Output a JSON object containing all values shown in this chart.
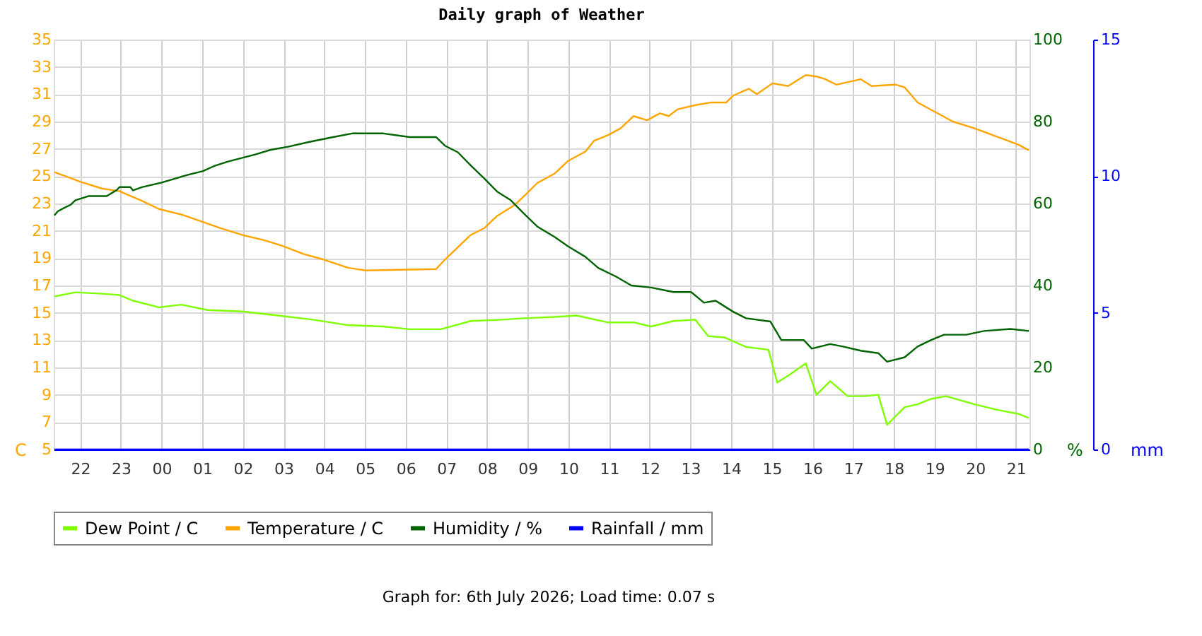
{
  "chart_data": {
    "type": "line",
    "title": "Daily graph of Weather",
    "annotations": [
      "Graph for: 6th July 2026; Load time: 0.07 s"
    ],
    "ylabel": "C",
    "y2label": "%",
    "y3label": "mm",
    "legend": "bottom",
    "grid": true,
    "line_style": "solid",
    "xlim": [
      "2026-07-05T21:21",
      "2026-07-06T21:20"
    ],
    "xticks": [
      {
        "value": "2026-07-05T22:00",
        "label": "22"
      },
      {
        "value": "2026-07-05T23:00",
        "label": "23"
      },
      {
        "value": "2026-07-06T00:00",
        "label": "00"
      },
      {
        "value": "2026-07-06T01:00",
        "label": "01"
      },
      {
        "value": "2026-07-06T02:00",
        "label": "02"
      },
      {
        "value": "2026-07-06T03:00",
        "label": "03"
      },
      {
        "value": "2026-07-06T04:00",
        "label": "04"
      },
      {
        "value": "2026-07-06T05:00",
        "label": "05"
      },
      {
        "value": "2026-07-06T06:00",
        "label": "06"
      },
      {
        "value": "2026-07-06T07:00",
        "label": "07"
      },
      {
        "value": "2026-07-06T08:00",
        "label": "08"
      },
      {
        "value": "2026-07-06T09:00",
        "label": "09"
      },
      {
        "value": "2026-07-06T10:00",
        "label": "10"
      },
      {
        "value": "2026-07-06T11:00",
        "label": "11"
      },
      {
        "value": "2026-07-06T12:00",
        "label": "12"
      },
      {
        "value": "2026-07-06T13:00",
        "label": "13"
      },
      {
        "value": "2026-07-06T14:00",
        "label": "14"
      },
      {
        "value": "2026-07-06T15:00",
        "label": "15"
      },
      {
        "value": "2026-07-06T16:00",
        "label": "16"
      },
      {
        "value": "2026-07-06T17:00",
        "label": "17"
      },
      {
        "value": "2026-07-06T18:00",
        "label": "18"
      },
      {
        "value": "2026-07-06T19:00",
        "label": "19"
      },
      {
        "value": "2026-07-06T20:00",
        "label": "20"
      },
      {
        "value": "2026-07-06T21:00",
        "label": "21"
      }
    ],
    "ylim": [
      5,
      35
    ],
    "yticks": [
      5,
      7,
      9,
      11,
      13,
      15,
      17,
      19,
      21,
      23,
      25,
      27,
      29,
      31,
      33,
      35
    ],
    "y2lim": [
      0,
      100
    ],
    "y2ticks": [
      0,
      20,
      40,
      60,
      80,
      100
    ],
    "y3lim": [
      0,
      15
    ],
    "y3ticks": [
      0,
      5,
      10,
      15
    ],
    "series": [
      {
        "name": "Dew Point / C",
        "color": "#7fff00",
        "axis": "y",
        "x": [
          "2026-07-05T21:22",
          "2026-07-05T21:53",
          "2026-07-05T22:32",
          "2026-07-05T22:58",
          "2026-07-05T23:17",
          "2026-07-05T23:56",
          "2026-07-06T00:29",
          "2026-07-06T01:08",
          "2026-07-06T01:59",
          "2026-07-06T02:52",
          "2026-07-06T03:43",
          "2026-07-06T04:35",
          "2026-07-06T05:27",
          "2026-07-06T06:06",
          "2026-07-06T06:52",
          "2026-07-06T07:36",
          "2026-07-06T08:22",
          "2026-07-06T08:54",
          "2026-07-06T09:40",
          "2026-07-06T10:12",
          "2026-07-06T10:58",
          "2026-07-06T11:36",
          "2026-07-06T12:02",
          "2026-07-06T12:35",
          "2026-07-06T13:07",
          "2026-07-06T13:26",
          "2026-07-06T13:50",
          "2026-07-06T14:22",
          "2026-07-06T14:55",
          "2026-07-06T15:08",
          "2026-07-06T15:27",
          "2026-07-06T15:50",
          "2026-07-06T16:06",
          "2026-07-06T16:26",
          "2026-07-06T16:52",
          "2026-07-06T17:17",
          "2026-07-06T17:37",
          "2026-07-06T17:50",
          "2026-07-06T18:16",
          "2026-07-06T18:35",
          "2026-07-06T18:55",
          "2026-07-06T19:17",
          "2026-07-06T19:59",
          "2026-07-06T20:32",
          "2026-07-06T21:04",
          "2026-07-06T21:19"
        ],
        "values": [
          16.2,
          16.5,
          16.4,
          16.3,
          15.9,
          15.4,
          15.6,
          15.2,
          15.1,
          14.8,
          14.5,
          14.1,
          14.0,
          13.8,
          13.8,
          14.4,
          14.5,
          14.6,
          14.7,
          14.8,
          14.3,
          14.3,
          14.0,
          14.4,
          14.5,
          13.3,
          13.2,
          12.5,
          12.3,
          9.9,
          10.5,
          11.3,
          9.0,
          10.0,
          8.9,
          8.9,
          9.0,
          6.8,
          8.1,
          8.3,
          8.7,
          8.9,
          8.3,
          7.9,
          7.6,
          7.3
        ]
      },
      {
        "name": "Temperature / C",
        "color": "#ffa500",
        "axis": "y",
        "x": [
          "2026-07-05T21:22",
          "2026-07-05T22:00",
          "2026-07-05T22:32",
          "2026-07-05T22:58",
          "2026-07-05T23:31",
          "2026-07-05T23:56",
          "2026-07-06T00:29",
          "2026-07-06T00:58",
          "2026-07-06T01:27",
          "2026-07-06T01:59",
          "2026-07-06T02:32",
          "2026-07-06T02:58",
          "2026-07-06T03:30",
          "2026-07-06T03:59",
          "2026-07-06T04:35",
          "2026-07-06T05:01",
          "2026-07-06T06:45",
          "2026-07-06T06:58",
          "2026-07-06T07:36",
          "2026-07-06T07:56",
          "2026-07-06T08:15",
          "2026-07-06T08:41",
          "2026-07-06T08:58",
          "2026-07-06T09:14",
          "2026-07-06T09:40",
          "2026-07-06T09:59",
          "2026-07-06T10:25",
          "2026-07-06T10:38",
          "2026-07-06T10:58",
          "2026-07-06T11:17",
          "2026-07-06T11:36",
          "2026-07-06T11:56",
          "2026-07-06T12:15",
          "2026-07-06T12:28",
          "2026-07-06T12:41",
          "2026-07-06T13:07",
          "2026-07-06T13:31",
          "2026-07-06T13:53",
          "2026-07-06T14:03",
          "2026-07-06T14:26",
          "2026-07-06T14:38",
          "2026-07-06T15:01",
          "2026-07-06T15:24",
          "2026-07-06T15:50",
          "2026-07-06T16:06",
          "2026-07-06T16:19",
          "2026-07-06T16:35",
          "2026-07-06T17:11",
          "2026-07-06T17:27",
          "2026-07-06T18:03",
          "2026-07-06T18:16",
          "2026-07-06T18:35",
          "2026-07-06T19:01",
          "2026-07-06T19:27",
          "2026-07-06T19:59",
          "2026-07-06T20:32",
          "2026-07-06T21:04",
          "2026-07-06T21:19"
        ],
        "values": [
          25.3,
          24.6,
          24.1,
          23.9,
          23.2,
          22.6,
          22.2,
          21.7,
          21.2,
          20.7,
          20.3,
          19.9,
          19.3,
          18.9,
          18.3,
          18.1,
          18.2,
          18.9,
          20.7,
          21.2,
          22.1,
          22.9,
          23.7,
          24.5,
          25.2,
          26.1,
          26.8,
          27.6,
          28.0,
          28.5,
          29.4,
          29.1,
          29.6,
          29.4,
          29.9,
          30.2,
          30.4,
          30.4,
          30.9,
          31.4,
          31.0,
          31.8,
          31.6,
          32.4,
          32.3,
          32.1,
          31.7,
          32.1,
          31.6,
          31.7,
          31.5,
          30.4,
          29.7,
          29.0,
          28.5,
          27.9,
          27.3,
          26.9
        ]
      },
      {
        "name": "Humidity / %",
        "color": "#006400",
        "axis": "y2",
        "x": [
          "2026-07-05T21:22",
          "2026-07-05T21:27",
          "2026-07-05T21:36",
          "2026-07-05T21:46",
          "2026-07-05T21:53",
          "2026-07-05T22:12",
          "2026-07-05T22:39",
          "2026-07-05T22:54",
          "2026-07-05T22:58",
          "2026-07-05T23:14",
          "2026-07-05T23:18",
          "2026-07-05T23:31",
          "2026-07-06T00:00",
          "2026-07-06T00:16",
          "2026-07-06T00:39",
          "2026-07-06T01:01",
          "2026-07-06T01:17",
          "2026-07-06T01:37",
          "2026-07-06T01:56",
          "2026-07-06T02:19",
          "2026-07-06T02:41",
          "2026-07-06T03:08",
          "2026-07-06T03:37",
          "2026-07-06T04:13",
          "2026-07-06T04:41",
          "2026-07-06T05:27",
          "2026-07-06T06:06",
          "2026-07-06T06:45",
          "2026-07-06T06:58",
          "2026-07-06T07:17",
          "2026-07-06T07:36",
          "2026-07-06T07:56",
          "2026-07-06T08:15",
          "2026-07-06T08:35",
          "2026-07-06T08:54",
          "2026-07-06T09:14",
          "2026-07-06T09:40",
          "2026-07-06T09:59",
          "2026-07-06T10:25",
          "2026-07-06T10:44",
          "2026-07-06T11:10",
          "2026-07-06T11:33",
          "2026-07-06T12:02",
          "2026-07-06T12:35",
          "2026-07-06T13:01",
          "2026-07-06T13:20",
          "2026-07-06T13:37",
          "2026-07-06T14:03",
          "2026-07-06T14:22",
          "2026-07-06T14:58",
          "2026-07-06T15:14",
          "2026-07-06T15:47",
          "2026-07-06T15:59",
          "2026-07-06T16:26",
          "2026-07-06T16:45",
          "2026-07-06T17:11",
          "2026-07-06T17:37",
          "2026-07-06T17:50",
          "2026-07-06T18:16",
          "2026-07-06T18:35",
          "2026-07-06T18:55",
          "2026-07-06T19:14",
          "2026-07-06T19:47",
          "2026-07-06T20:13",
          "2026-07-06T20:52",
          "2026-07-06T21:19"
        ],
        "values": [
          57.1,
          58.1,
          58.9,
          59.7,
          60.8,
          61.8,
          61.8,
          63.3,
          64.0,
          64.0,
          63.2,
          64.0,
          65.1,
          65.9,
          67.0,
          67.9,
          69.1,
          70.2,
          71.0,
          72.0,
          73.1,
          73.9,
          75.0,
          76.2,
          77.1,
          77.1,
          76.2,
          76.2,
          74.1,
          72.5,
          69.3,
          66.1,
          62.9,
          60.8,
          57.6,
          54.4,
          51.8,
          49.6,
          47.0,
          44.3,
          42.2,
          40.0,
          39.5,
          38.4,
          38.4,
          35.8,
          36.3,
          33.6,
          32.0,
          31.2,
          26.7,
          26.7,
          24.6,
          25.7,
          25.1,
          24.1,
          23.5,
          21.4,
          22.5,
          25.1,
          26.7,
          28.0,
          28.0,
          28.9,
          29.4,
          28.9
        ]
      },
      {
        "name": "Rainfall / mm",
        "color": "#0000ff",
        "axis": "y3",
        "x": [
          "2026-07-05T21:22",
          "2026-07-06T21:19"
        ],
        "values": [
          0,
          0
        ]
      }
    ]
  }
}
